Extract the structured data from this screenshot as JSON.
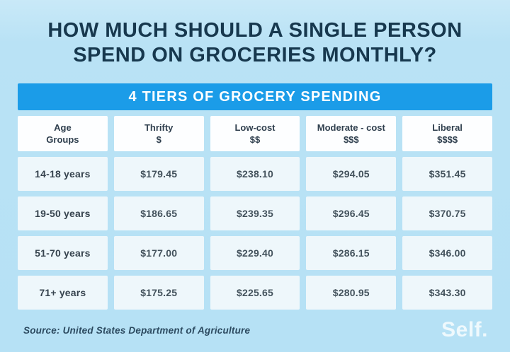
{
  "page": {
    "title_line1": "HOW MUCH SHOULD A SINGLE PERSON",
    "title_line2": "SPEND ON GROCERIES MONTHLY?",
    "background_color": "#b9e2f5",
    "accent_color": "#1b9ce8",
    "title_color": "#17384e"
  },
  "table": {
    "banner": "4 TIERS OF GROCERY SPENDING",
    "columns": [
      {
        "line1": "Age",
        "line2": "Groups"
      },
      {
        "line1": "Thrifty",
        "line2": "$"
      },
      {
        "line1": "Low-cost",
        "line2": "$$"
      },
      {
        "line1": "Moderate - cost",
        "line2": "$$$"
      },
      {
        "line1": "Liberal",
        "line2": "$$$$"
      }
    ],
    "rows": [
      {
        "age": "14-18 years",
        "values": [
          "$179.45",
          "$238.10",
          "$294.05",
          "$351.45"
        ]
      },
      {
        "age": "19-50 years",
        "values": [
          "$186.65",
          "$239.35",
          "$296.45",
          "$370.75"
        ]
      },
      {
        "age": "51-70 years",
        "values": [
          "$177.00",
          "$229.40",
          "$286.15",
          "$346.00"
        ]
      },
      {
        "age": "71+ years",
        "values": [
          "$175.25",
          "$225.65",
          "$280.95",
          "$343.30"
        ]
      }
    ]
  },
  "footer": {
    "source": "Source: United States Department of Agriculture",
    "logo": "Self."
  },
  "chart_data": {
    "type": "table",
    "title": "HOW MUCH SHOULD A SINGLE PERSON SPEND ON GROCERIES MONTHLY?",
    "subtitle": "4 TIERS OF GROCERY SPENDING",
    "columns": [
      "Age Groups",
      "Thrifty $",
      "Low-cost $$",
      "Moderate - cost $$$",
      "Liberal $$$$"
    ],
    "rows": [
      [
        "14-18 years",
        179.45,
        238.1,
        294.05,
        351.45
      ],
      [
        "19-50 years",
        186.65,
        239.35,
        296.45,
        370.75
      ],
      [
        "51-70 years",
        177.0,
        229.4,
        286.15,
        346.0
      ],
      [
        "71+ years",
        175.25,
        225.65,
        280.95,
        343.3
      ]
    ],
    "units": "USD per month",
    "source": "United States Department of Agriculture"
  }
}
